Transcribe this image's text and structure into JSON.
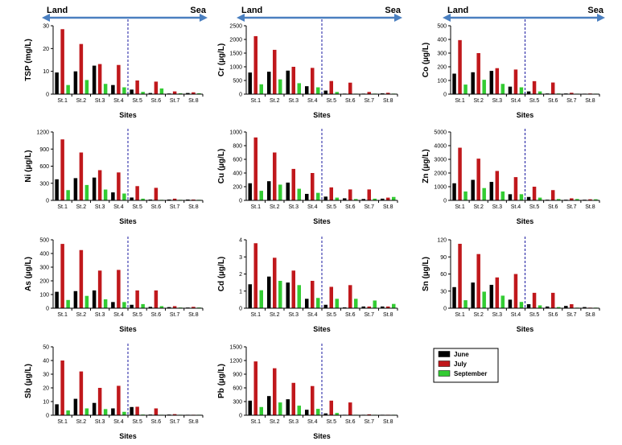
{
  "figure": {
    "land_label": "Land",
    "sea_label": "Sea",
    "xlabel": "Sites",
    "sites": [
      "St.1",
      "St.2",
      "St.3",
      "St.4",
      "St.5",
      "St.6",
      "St.7",
      "St.8"
    ]
  },
  "legend": {
    "items": [
      {
        "label": "June",
        "color": "#000000"
      },
      {
        "label": "July",
        "color": "#c0181c"
      },
      {
        "label": "September",
        "color": "#33cc33"
      }
    ]
  },
  "colors": {
    "june": "#000000",
    "july": "#c0181c",
    "september": "#33cc33",
    "border": "#1f6fb4",
    "arrow": "#4a7fc0",
    "divider": "#1a1aa0"
  },
  "chart_data": [
    {
      "type": "bar",
      "ylabel": "TSP (mg/L)",
      "ylim": [
        0,
        30
      ],
      "yticks": [
        0,
        10,
        20,
        30
      ],
      "categories": [
        "St.1",
        "St.2",
        "St.3",
        "St.4",
        "St.5",
        "St.6",
        "St.7",
        "St.8"
      ],
      "series": [
        {
          "name": "June",
          "values": [
            9.5,
            10,
            12.5,
            4,
            2,
            0.5,
            0.3,
            0.5
          ]
        },
        {
          "name": "July",
          "values": [
            28.5,
            22,
            13.2,
            12.8,
            6,
            5.5,
            1.2,
            0.8
          ]
        },
        {
          "name": "September",
          "values": [
            4,
            6.2,
            4.5,
            3,
            1,
            2.5,
            0.4,
            0.4
          ]
        }
      ]
    },
    {
      "type": "bar",
      "ylabel": "Cr (µg/L)",
      "ylim": [
        0,
        2500
      ],
      "yticks": [
        0,
        500,
        1000,
        1500,
        2000,
        2500
      ],
      "categories": [
        "St.1",
        "St.2",
        "St.3",
        "St.4",
        "St.5",
        "St.6",
        "St.7",
        "St.8"
      ],
      "series": [
        {
          "name": "June",
          "values": [
            790,
            820,
            860,
            290,
            130,
            20,
            20,
            30
          ]
        },
        {
          "name": "July",
          "values": [
            2120,
            1620,
            1000,
            960,
            480,
            420,
            80,
            50
          ]
        },
        {
          "name": "September",
          "values": [
            360,
            540,
            400,
            250,
            80,
            10,
            20,
            20
          ]
        }
      ]
    },
    {
      "type": "bar",
      "ylabel": "Co (µg/L)",
      "ylim": [
        0,
        500
      ],
      "yticks": [
        0,
        100,
        200,
        300,
        400,
        500
      ],
      "categories": [
        "St.1",
        "St.2",
        "St.3",
        "St.4",
        "St.5",
        "St.6",
        "St.7",
        "St.8"
      ],
      "series": [
        {
          "name": "June",
          "values": [
            150,
            160,
            170,
            55,
            20,
            5,
            5,
            3
          ]
        },
        {
          "name": "July",
          "values": [
            395,
            300,
            190,
            180,
            95,
            85,
            10,
            5
          ]
        },
        {
          "name": "September",
          "values": [
            70,
            105,
            75,
            50,
            20,
            5,
            3,
            3
          ]
        }
      ]
    },
    {
      "type": "bar",
      "ylabel": "Ni (µg/L)",
      "ylim": [
        0,
        1200
      ],
      "yticks": [
        0,
        300,
        600,
        900,
        1200
      ],
      "categories": [
        "St.1",
        "St.2",
        "St.3",
        "St.4",
        "St.5",
        "St.6",
        "St.7",
        "St.8"
      ],
      "series": [
        {
          "name": "June",
          "values": [
            370,
            390,
            400,
            140,
            50,
            15,
            15,
            15
          ]
        },
        {
          "name": "July",
          "values": [
            1070,
            840,
            530,
            490,
            250,
            220,
            30,
            15
          ]
        },
        {
          "name": "September",
          "values": [
            180,
            270,
            190,
            120,
            30,
            10,
            10,
            10
          ]
        }
      ]
    },
    {
      "type": "bar",
      "ylabel": "Cu (µg/L)",
      "ylim": [
        0,
        1000
      ],
      "yticks": [
        0,
        200,
        400,
        600,
        800,
        1000
      ],
      "categories": [
        "St.1",
        "St.2",
        "St.3",
        "St.4",
        "St.5",
        "St.6",
        "St.7",
        "St.8"
      ],
      "series": [
        {
          "name": "June",
          "values": [
            250,
            280,
            260,
            95,
            55,
            30,
            20,
            25
          ]
        },
        {
          "name": "July",
          "values": [
            920,
            700,
            460,
            400,
            190,
            160,
            160,
            40
          ]
        },
        {
          "name": "September",
          "values": [
            140,
            230,
            170,
            110,
            40,
            20,
            25,
            50
          ]
        }
      ]
    },
    {
      "type": "bar",
      "ylabel": "Zn (µg/L)",
      "ylim": [
        0,
        5000
      ],
      "yticks": [
        0,
        1000,
        2000,
        3000,
        4000,
        5000
      ],
      "categories": [
        "St.1",
        "St.2",
        "St.3",
        "St.4",
        "St.5",
        "St.6",
        "St.7",
        "St.8"
      ],
      "series": [
        {
          "name": "June",
          "values": [
            1250,
            1500,
            1350,
            450,
            250,
            50,
            50,
            50
          ]
        },
        {
          "name": "July",
          "values": [
            3850,
            3050,
            2150,
            1700,
            1000,
            750,
            150,
            80
          ]
        },
        {
          "name": "September",
          "values": [
            650,
            900,
            650,
            450,
            200,
            100,
            100,
            80
          ]
        }
      ]
    },
    {
      "type": "bar",
      "ylabel": "As (µg/L)",
      "ylim": [
        0,
        500
      ],
      "yticks": [
        0,
        100,
        200,
        300,
        400,
        500
      ],
      "categories": [
        "St.1",
        "St.2",
        "St.3",
        "St.4",
        "St.5",
        "St.6",
        "St.7",
        "St.8"
      ],
      "series": [
        {
          "name": "June",
          "values": [
            120,
            125,
            130,
            45,
            25,
            10,
            8,
            5
          ]
        },
        {
          "name": "July",
          "values": [
            470,
            425,
            275,
            280,
            130,
            130,
            15,
            10
          ]
        },
        {
          "name": "September",
          "values": [
            60,
            90,
            65,
            45,
            30,
            15,
            5,
            5
          ]
        }
      ]
    },
    {
      "type": "bar",
      "ylabel": "Cd (µg/L)",
      "ylim": [
        0,
        4
      ],
      "yticks": [
        0,
        1,
        2,
        3,
        4
      ],
      "categories": [
        "St.1",
        "St.2",
        "St.3",
        "St.4",
        "St.5",
        "St.6",
        "St.7",
        "St.8"
      ],
      "series": [
        {
          "name": "June",
          "values": [
            1.4,
            1.85,
            1.5,
            0.55,
            0.2,
            0.05,
            0.1,
            0.1
          ]
        },
        {
          "name": "July",
          "values": [
            3.8,
            2.95,
            2.2,
            1.6,
            1.25,
            1.35,
            0.1,
            0.1
          ]
        },
        {
          "name": "September",
          "values": [
            1.05,
            1.6,
            1.35,
            0.6,
            0.55,
            0.55,
            0.45,
            0.25
          ]
        }
      ]
    },
    {
      "type": "bar",
      "ylabel": "Sn (µg/L)",
      "ylim": [
        0,
        120
      ],
      "yticks": [
        0,
        30,
        60,
        90,
        120
      ],
      "categories": [
        "St.1",
        "St.2",
        "St.3",
        "St.4",
        "St.5",
        "St.6",
        "St.7",
        "St.8"
      ],
      "series": [
        {
          "name": "June",
          "values": [
            37,
            45,
            41,
            15,
            7,
            3,
            4,
            2
          ]
        },
        {
          "name": "July",
          "values": [
            113,
            95,
            54,
            60,
            27,
            27,
            7,
            1
          ]
        },
        {
          "name": "September",
          "values": [
            14,
            29,
            22,
            11,
            5,
            2,
            1,
            1
          ]
        }
      ]
    },
    {
      "type": "bar",
      "ylabel": "Sb (µg/L)",
      "ylim": [
        0,
        50
      ],
      "yticks": [
        0,
        10,
        20,
        30,
        40,
        50
      ],
      "categories": [
        "St.1",
        "St.2",
        "St.3",
        "St.4",
        "St.5",
        "St.6",
        "St.7",
        "St.8"
      ],
      "series": [
        {
          "name": "June",
          "values": [
            8,
            12,
            9,
            5,
            6,
            0.5,
            0.5,
            0.3
          ]
        },
        {
          "name": "July",
          "values": [
            40,
            32,
            20,
            21.5,
            6.2,
            5,
            0.8,
            0.3
          ]
        },
        {
          "name": "September",
          "values": [
            3.5,
            5,
            4.5,
            2.5,
            0.5,
            0.3,
            0.3,
            0.2
          ]
        }
      ]
    },
    {
      "type": "bar",
      "ylabel": "Pb (µg/L)",
      "ylim": [
        0,
        1500
      ],
      "yticks": [
        0,
        300,
        600,
        900,
        1200,
        1500
      ],
      "categories": [
        "St.1",
        "St.2",
        "St.3",
        "St.4",
        "St.5",
        "St.6",
        "St.7",
        "St.8"
      ],
      "series": [
        {
          "name": "June",
          "values": [
            320,
            420,
            350,
            120,
            40,
            10,
            10,
            10
          ]
        },
        {
          "name": "July",
          "values": [
            1180,
            1030,
            710,
            640,
            320,
            280,
            20,
            10
          ]
        },
        {
          "name": "September",
          "values": [
            180,
            280,
            210,
            140,
            50,
            10,
            5,
            5
          ]
        }
      ]
    }
  ]
}
